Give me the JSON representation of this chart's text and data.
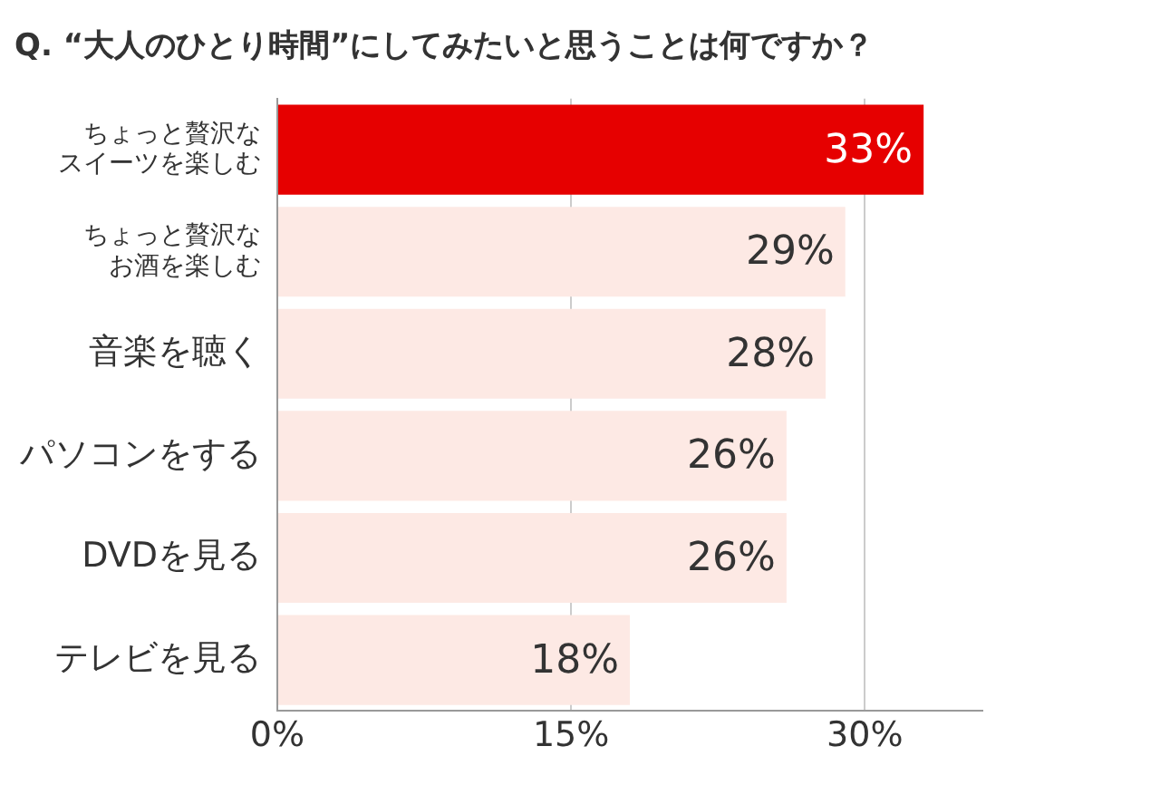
{
  "chart_data": {
    "type": "bar",
    "orientation": "horizontal",
    "title": "Q. “大人のひとり時間”にしてみたいと思うことは何ですか？",
    "categories": [
      "ちょっと贅沢なスイーツを楽しむ",
      "ちょっと贅沢なお酒を楽しむ",
      "音楽を聴く",
      "パソコンをする",
      "DVDを見る",
      "テレビを見る"
    ],
    "values": [
      33,
      29,
      28,
      26,
      26,
      18
    ],
    "colors": [
      "#e60000",
      "#fde9e4",
      "#fde9e4",
      "#fde9e4",
      "#fde9e4",
      "#fde9e4"
    ],
    "value_labels": [
      "33%",
      "29%",
      "28%",
      "26%",
      "26%",
      "18%"
    ],
    "xlim": [
      0,
      36
    ],
    "xticks": [
      {
        "value": 0,
        "label": "0%"
      },
      {
        "value": 15,
        "label": "15%"
      },
      {
        "value": 30,
        "label": "30%"
      }
    ],
    "grid": "x"
  }
}
